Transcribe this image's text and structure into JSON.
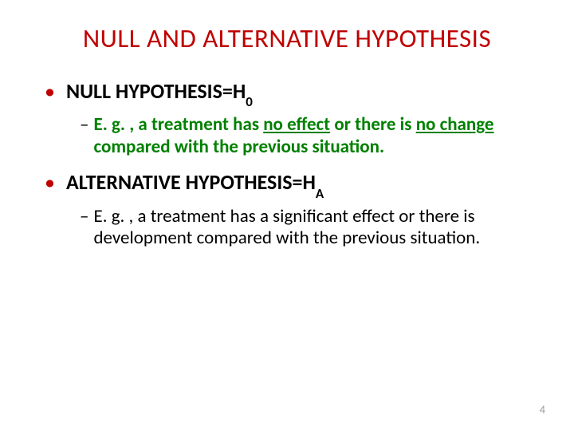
{
  "title": "NULL AND ALTERNATIVE HYPOTHESIS",
  "items": [
    {
      "main_prefix": "NULL HYPOTHESIS=H",
      "main_sub": "0",
      "sub_class": "green",
      "sub_p1": "E. g. , a treatment has ",
      "sub_u1": "no effect",
      "sub_p2": " or there is ",
      "sub_u2": "no change",
      "sub_p3": " compared with the previous situation."
    },
    {
      "main_prefix": "ALTERNATIVE HYPOTHESIS=H",
      "main_sub": "A",
      "sub_class": "black",
      "sub_p1": "E. g. , a treatment has a significant effect or there is development compared with the previous situation.",
      "sub_u1": "",
      "sub_p2": "",
      "sub_u2": "",
      "sub_p3": ""
    }
  ],
  "page_number": "4",
  "colors": {
    "title": "#c00000",
    "bullet_dot": "#c00000",
    "green_text": "#008000",
    "black_text": "#000000",
    "page_num": "#999999",
    "background": "#ffffff"
  }
}
